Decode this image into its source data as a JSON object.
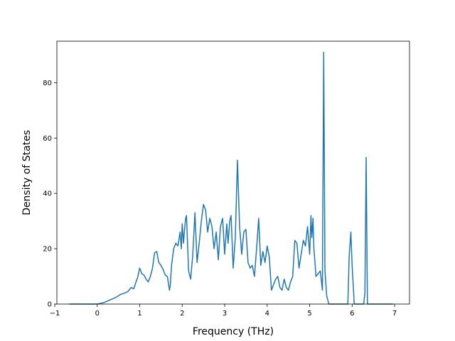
{
  "chart_data": {
    "type": "line",
    "title": "",
    "xlabel": "Frequency (THz)",
    "ylabel": "Density of States",
    "xlim": [
      -0.95,
      7.35
    ],
    "ylim": [
      0,
      95
    ],
    "x_ticks": [
      -1,
      0,
      1,
      2,
      3,
      4,
      5,
      6,
      7
    ],
    "y_ticks": [
      0,
      20,
      40,
      60,
      80
    ],
    "grid": false,
    "legend": "none",
    "colors": {
      "line": "#1f77b4",
      "axes": "#000000",
      "background": "#ffffff"
    },
    "series": [
      {
        "x": [
          -0.65,
          -0.3,
          0.0,
          0.15,
          0.3,
          0.45,
          0.55,
          0.65,
          0.72,
          0.8,
          0.86,
          0.9,
          0.95,
          1.0,
          1.05,
          1.1,
          1.15,
          1.2,
          1.25,
          1.3,
          1.35,
          1.4,
          1.45,
          1.5,
          1.55,
          1.6,
          1.65,
          1.7,
          1.72,
          1.75,
          1.8,
          1.85,
          1.9,
          1.93,
          1.95,
          1.98,
          2.0,
          2.03,
          2.05,
          2.08,
          2.1,
          2.15,
          2.2,
          2.25,
          2.3,
          2.35,
          2.4,
          2.45,
          2.5,
          2.55,
          2.6,
          2.65,
          2.7,
          2.75,
          2.8,
          2.85,
          2.9,
          2.95,
          3.0,
          3.05,
          3.08,
          3.12,
          3.15,
          3.2,
          3.25,
          3.3,
          3.35,
          3.4,
          3.45,
          3.5,
          3.55,
          3.6,
          3.65,
          3.7,
          3.75,
          3.8,
          3.85,
          3.9,
          3.95,
          4.0,
          4.05,
          4.1,
          4.15,
          4.2,
          4.25,
          4.3,
          4.35,
          4.4,
          4.45,
          4.5,
          4.55,
          4.6,
          4.65,
          4.7,
          4.75,
          4.8,
          4.85,
          4.9,
          4.95,
          5.0,
          5.03,
          5.05,
          5.08,
          5.1,
          5.15,
          5.2,
          5.25,
          5.3,
          5.33,
          5.36,
          5.4,
          5.45,
          5.5,
          5.55,
          5.6,
          5.7,
          5.8,
          5.9,
          5.93,
          5.97,
          6.0,
          6.05,
          6.1,
          6.2,
          6.27,
          6.3,
          6.33,
          6.36,
          6.4,
          6.5,
          6.7,
          6.95
        ],
        "y": [
          0,
          0,
          0,
          0.5,
          1.5,
          2.5,
          3.5,
          4,
          4.5,
          6,
          5.5,
          7.5,
          9.5,
          13,
          11,
          10.5,
          9,
          8,
          10,
          13,
          18.5,
          19,
          15,
          14,
          12.5,
          10.5,
          10,
          5,
          7,
          14,
          20,
          22,
          21,
          24,
          26,
          20,
          29,
          22,
          26,
          31,
          32,
          12,
          9,
          18,
          33,
          15,
          22,
          30,
          36,
          34,
          26,
          31,
          28,
          20,
          26,
          16,
          28,
          31,
          18,
          29,
          22,
          30,
          32,
          13,
          24,
          52,
          28,
          18,
          26,
          27,
          15,
          13,
          14,
          10,
          20,
          31,
          14,
          19,
          15,
          21,
          17,
          5,
          7,
          9,
          10,
          6,
          5,
          9,
          6,
          5,
          8,
          10,
          23,
          22,
          13,
          18,
          23,
          21,
          28,
          18,
          32,
          24,
          31,
          20,
          10,
          11,
          12,
          5,
          91,
          12,
          3,
          0,
          0,
          0,
          0,
          0,
          0,
          0,
          17,
          26,
          14,
          0,
          0,
          0,
          0,
          4,
          53,
          0,
          0,
          0,
          0,
          0
        ]
      }
    ]
  }
}
